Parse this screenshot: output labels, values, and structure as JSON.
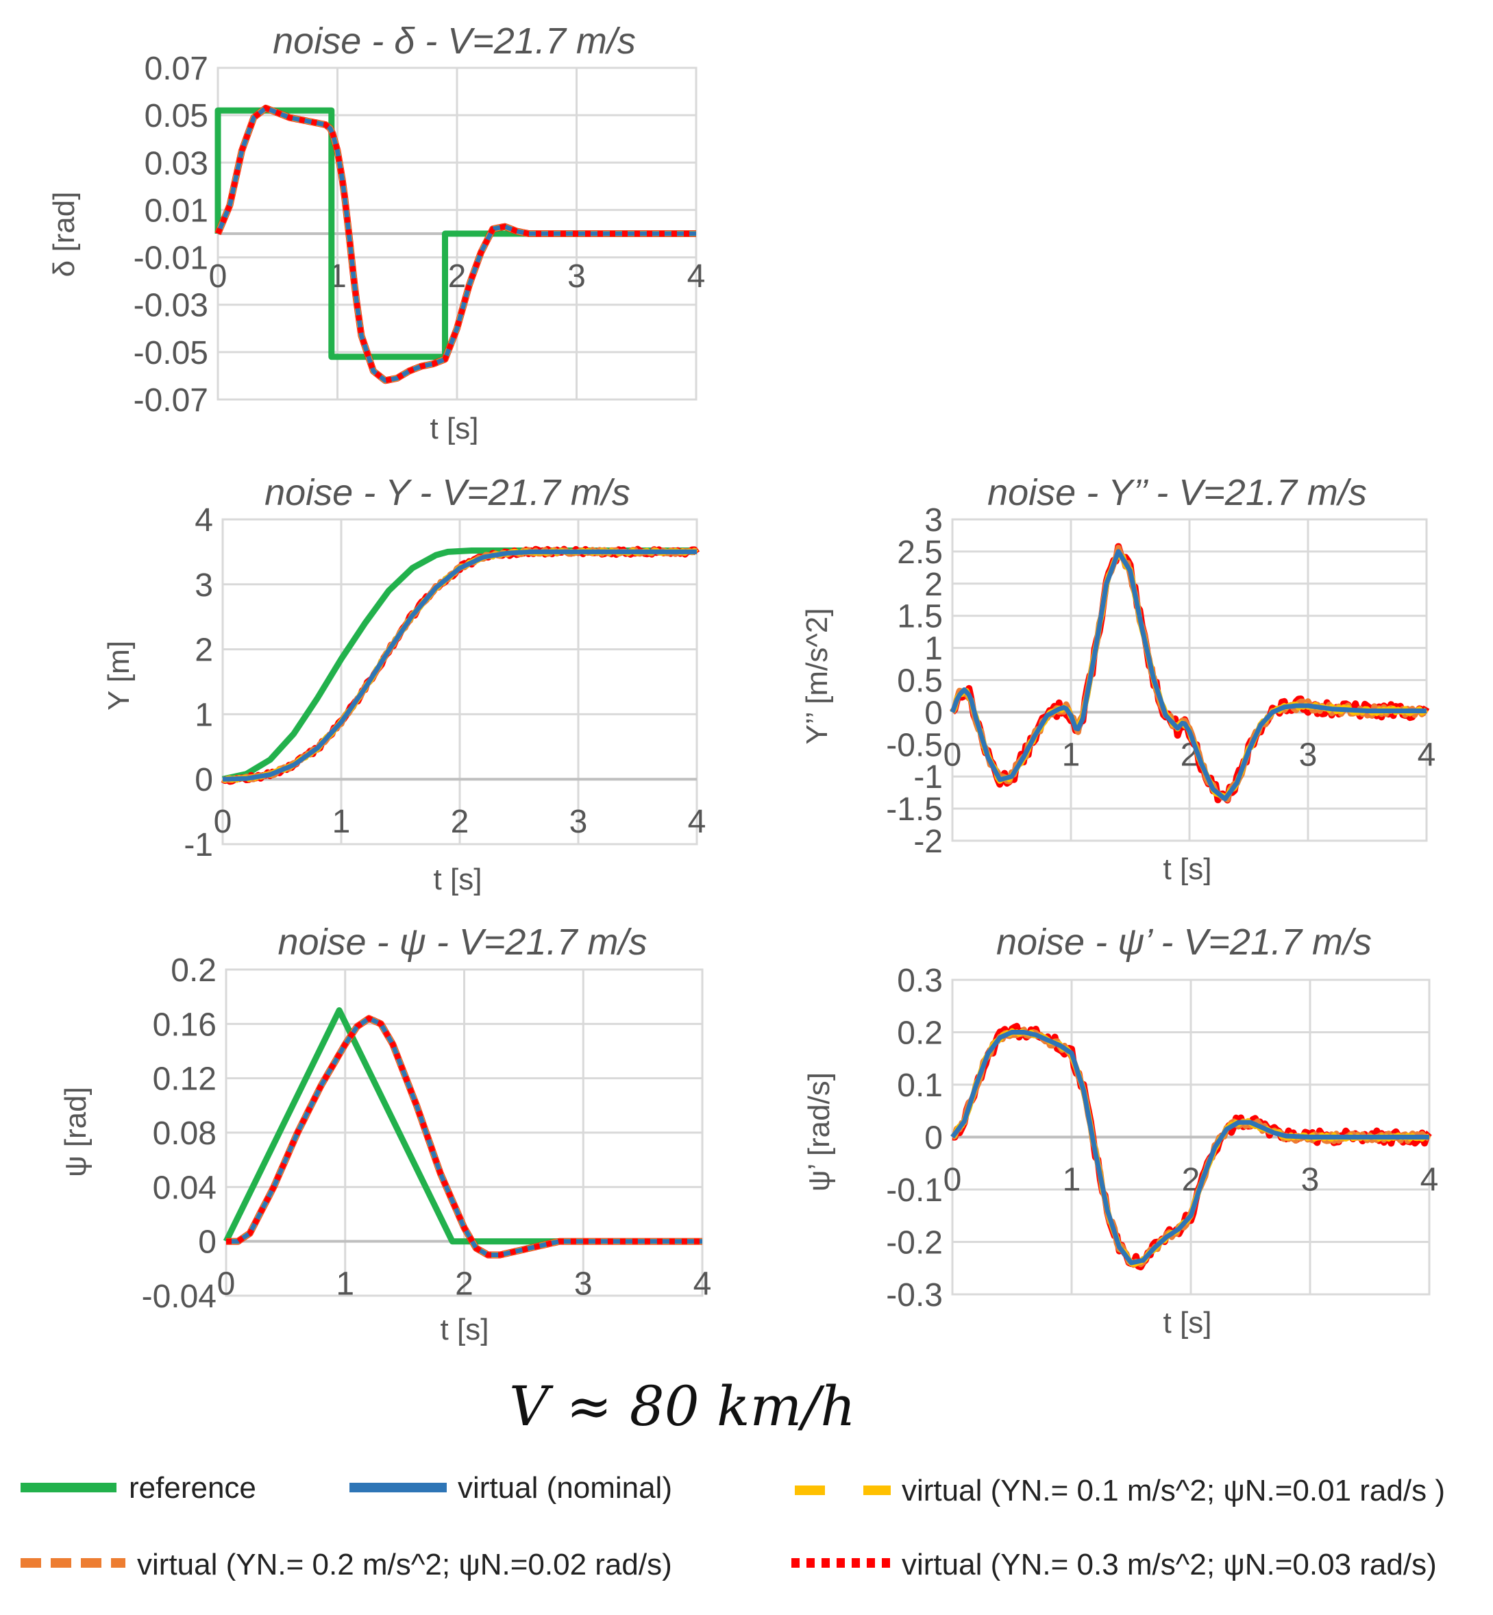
{
  "speed_label": "V ≈ 80 km/h",
  "colors": {
    "reference": "#22B14C",
    "nominal": "#2E75B6",
    "noise1": "#FFC000",
    "noise2": "#ED7D31",
    "noise3": "#FF0000"
  },
  "legend": [
    {
      "key": "reference",
      "label": "reference",
      "style": "solid"
    },
    {
      "key": "nominal",
      "label": "virtual (nominal)",
      "style": "solid"
    },
    {
      "key": "noise1",
      "label": "virtual (YN.= 0.1 m/s^2; ψN.=0.01 rad/s )",
      "style": "dash"
    },
    {
      "key": "noise2",
      "label": "virtual (YN.= 0.2 m/s^2; ψN.=0.02 rad/s)",
      "style": "dash"
    },
    {
      "key": "noise3",
      "label": "virtual (YN.= 0.3 m/s^2; ψN.=0.03 rad/s)",
      "style": "dot"
    }
  ],
  "chart_data": [
    {
      "id": "delta",
      "type": "line",
      "title": "noise - δ - V=21.7 m/s",
      "xlabel": "t [s]",
      "ylabel": "δ [rad]",
      "xlim": [
        0,
        4
      ],
      "ylim": [
        -0.07,
        0.07
      ],
      "xticks": [
        0,
        1,
        2,
        3,
        4
      ],
      "xtick_labels": [
        "0",
        "1",
        "2",
        "3",
        "4"
      ],
      "yticks": [
        0.07,
        0.05,
        0.03,
        0.01,
        -0.01,
        -0.03,
        -0.05,
        -0.07
      ],
      "ytick_labels": [
        "0.07",
        "0.05",
        "0.03",
        "0.01",
        "-0.01",
        "-0.03",
        "-0.05",
        "-0.07"
      ],
      "reference": [
        [
          0,
          0
        ],
        [
          0,
          0.052
        ],
        [
          0.95,
          0.052
        ],
        [
          0.95,
          -0.052
        ],
        [
          1.9,
          -0.052
        ],
        [
          1.9,
          0
        ],
        [
          4,
          0
        ]
      ],
      "virtual": [
        [
          0,
          0
        ],
        [
          0.1,
          0.012
        ],
        [
          0.2,
          0.035
        ],
        [
          0.3,
          0.049
        ],
        [
          0.4,
          0.053
        ],
        [
          0.5,
          0.051
        ],
        [
          0.6,
          0.049
        ],
        [
          0.7,
          0.048
        ],
        [
          0.8,
          0.047
        ],
        [
          0.9,
          0.046
        ],
        [
          0.95,
          0.044
        ],
        [
          1.0,
          0.035
        ],
        [
          1.05,
          0.02
        ],
        [
          1.1,
          -0.002
        ],
        [
          1.15,
          -0.025
        ],
        [
          1.2,
          -0.043
        ],
        [
          1.3,
          -0.058
        ],
        [
          1.4,
          -0.062
        ],
        [
          1.5,
          -0.061
        ],
        [
          1.6,
          -0.058
        ],
        [
          1.7,
          -0.056
        ],
        [
          1.8,
          -0.055
        ],
        [
          1.9,
          -0.053
        ],
        [
          2.0,
          -0.04
        ],
        [
          2.1,
          -0.022
        ],
        [
          2.2,
          -0.008
        ],
        [
          2.3,
          0.002
        ],
        [
          2.4,
          0.003
        ],
        [
          2.5,
          0.001
        ],
        [
          2.6,
          0.0
        ],
        [
          3.0,
          0.0
        ],
        [
          4.0,
          0.0
        ]
      ],
      "noise_amp": [
        0,
        0,
        0
      ],
      "xaxis_at_zero": true
    },
    {
      "id": "Y",
      "type": "line",
      "title": "noise - Y - V=21.7 m/s",
      "xlabel": "t [s]",
      "ylabel": "Y [m]",
      "xlim": [
        0,
        4
      ],
      "ylim": [
        -1,
        4
      ],
      "xticks": [
        0,
        1,
        2,
        3,
        4
      ],
      "xtick_labels": [
        "0",
        "1",
        "2",
        "3",
        "4"
      ],
      "yticks": [
        4,
        3,
        2,
        1,
        0,
        -1
      ],
      "ytick_labels": [
        "4",
        "3",
        "2",
        "1",
        "0",
        "-1"
      ],
      "reference": [
        [
          0,
          0
        ],
        [
          0.2,
          0.08
        ],
        [
          0.4,
          0.3
        ],
        [
          0.6,
          0.7
        ],
        [
          0.8,
          1.25
        ],
        [
          1.0,
          1.85
        ],
        [
          1.2,
          2.4
        ],
        [
          1.4,
          2.9
        ],
        [
          1.6,
          3.25
        ],
        [
          1.8,
          3.45
        ],
        [
          1.9,
          3.5
        ],
        [
          2.1,
          3.52
        ],
        [
          4.0,
          3.52
        ]
      ],
      "virtual": [
        [
          0,
          0
        ],
        [
          0.2,
          0.01
        ],
        [
          0.4,
          0.07
        ],
        [
          0.6,
          0.22
        ],
        [
          0.8,
          0.48
        ],
        [
          1.0,
          0.88
        ],
        [
          1.2,
          1.4
        ],
        [
          1.4,
          1.98
        ],
        [
          1.6,
          2.52
        ],
        [
          1.8,
          2.95
        ],
        [
          2.0,
          3.25
        ],
        [
          2.2,
          3.42
        ],
        [
          2.4,
          3.48
        ],
        [
          2.6,
          3.5
        ],
        [
          3.0,
          3.5
        ],
        [
          4.0,
          3.5
        ]
      ],
      "noise_amp": [
        0.02,
        0.03,
        0.04
      ],
      "xaxis_at_zero": true
    },
    {
      "id": "Ydd",
      "type": "line",
      "title": "noise - Y’’ - V=21.7 m/s",
      "xlabel": "t [s]",
      "ylabel": "Y’’ [m/s^2]",
      "xlim": [
        0,
        4
      ],
      "ylim": [
        -2,
        3
      ],
      "xticks": [
        0,
        1,
        2,
        3,
        4
      ],
      "xtick_labels": [
        "0",
        "1",
        "2",
        "3",
        "4"
      ],
      "yticks": [
        3,
        2.5,
        2,
        1.5,
        1,
        0.5,
        0,
        -0.5,
        -1,
        -1.5,
        -2
      ],
      "ytick_labels": [
        "3",
        "2.5",
        "2",
        "1.5",
        "1",
        "0.5",
        "0",
        "-0.5",
        "-1",
        "-1.5",
        "-2"
      ],
      "reference": [],
      "virtual": [
        [
          0,
          0
        ],
        [
          0.05,
          0.25
        ],
        [
          0.1,
          0.35
        ],
        [
          0.15,
          0.25
        ],
        [
          0.2,
          -0.1
        ],
        [
          0.3,
          -0.7
        ],
        [
          0.4,
          -1.05
        ],
        [
          0.5,
          -1.0
        ],
        [
          0.6,
          -0.7
        ],
        [
          0.7,
          -0.35
        ],
        [
          0.8,
          -0.05
        ],
        [
          0.9,
          0.05
        ],
        [
          0.95,
          0.08
        ],
        [
          1.0,
          -0.05
        ],
        [
          1.05,
          -0.3
        ],
        [
          1.1,
          -0.1
        ],
        [
          1.2,
          0.9
        ],
        [
          1.3,
          2.0
        ],
        [
          1.4,
          2.5
        ],
        [
          1.5,
          2.2
        ],
        [
          1.6,
          1.3
        ],
        [
          1.7,
          0.5
        ],
        [
          1.8,
          -0.05
        ],
        [
          1.9,
          -0.25
        ],
        [
          1.95,
          -0.15
        ],
        [
          2.0,
          -0.3
        ],
        [
          2.1,
          -0.8
        ],
        [
          2.2,
          -1.2
        ],
        [
          2.3,
          -1.35
        ],
        [
          2.4,
          -1.1
        ],
        [
          2.5,
          -0.6
        ],
        [
          2.6,
          -0.2
        ],
        [
          2.7,
          0.0
        ],
        [
          2.8,
          0.08
        ],
        [
          2.9,
          0.1
        ],
        [
          3.0,
          0.1
        ],
        [
          3.2,
          0.05
        ],
        [
          3.5,
          0.02
        ],
        [
          4.0,
          0.02
        ]
      ],
      "noise_amp": [
        0.04,
        0.07,
        0.11
      ],
      "xaxis_at_zero": true
    },
    {
      "id": "psi",
      "type": "line",
      "title": "noise - ψ - V=21.7 m/s",
      "xlabel": "t [s]",
      "ylabel": "ψ [rad]",
      "xlim": [
        0,
        4
      ],
      "ylim": [
        -0.04,
        0.2
      ],
      "xticks": [
        0,
        1,
        2,
        3,
        4
      ],
      "xtick_labels": [
        "0",
        "1",
        "2",
        "3",
        "4"
      ],
      "yticks": [
        0.2,
        0.16,
        0.12,
        0.08,
        0.04,
        0,
        -0.04
      ],
      "ytick_labels": [
        "0.2",
        "0.16",
        "0.12",
        "0.08",
        "0.04",
        "0",
        "-0.04"
      ],
      "reference": [
        [
          0,
          0
        ],
        [
          0.95,
          0.17
        ],
        [
          1.9,
          0
        ],
        [
          4.0,
          0
        ]
      ],
      "virtual": [
        [
          0,
          0
        ],
        [
          0.1,
          0.0
        ],
        [
          0.2,
          0.006
        ],
        [
          0.4,
          0.04
        ],
        [
          0.6,
          0.08
        ],
        [
          0.8,
          0.115
        ],
        [
          1.0,
          0.145
        ],
        [
          1.1,
          0.158
        ],
        [
          1.2,
          0.164
        ],
        [
          1.3,
          0.16
        ],
        [
          1.4,
          0.145
        ],
        [
          1.6,
          0.1
        ],
        [
          1.8,
          0.05
        ],
        [
          2.0,
          0.01
        ],
        [
          2.1,
          -0.005
        ],
        [
          2.2,
          -0.01
        ],
        [
          2.3,
          -0.01
        ],
        [
          2.5,
          -0.006
        ],
        [
          2.7,
          -0.002
        ],
        [
          2.8,
          0.0
        ],
        [
          4.0,
          0.0
        ]
      ],
      "noise_amp": [
        0,
        0,
        0
      ],
      "xaxis_at_zero": true
    },
    {
      "id": "psid",
      "type": "line",
      "title": "noise - ψ’ - V=21.7 m/s",
      "xlabel": "t [s]",
      "ylabel": "ψ’ [rad/s]",
      "xlim": [
        0,
        4
      ],
      "ylim": [
        -0.3,
        0.3
      ],
      "xticks": [
        0,
        1,
        2,
        3,
        4
      ],
      "xtick_labels": [
        "0",
        "1",
        "2",
        "3",
        "4"
      ],
      "yticks": [
        0.3,
        0.2,
        0.1,
        0,
        -0.1,
        -0.2,
        -0.3
      ],
      "ytick_labels": [
        "0.3",
        "0.2",
        "0.1",
        "0",
        "-0.1",
        "-0.2",
        "-0.3"
      ],
      "reference": [],
      "virtual": [
        [
          0,
          0
        ],
        [
          0.1,
          0.03
        ],
        [
          0.2,
          0.1
        ],
        [
          0.3,
          0.16
        ],
        [
          0.4,
          0.19
        ],
        [
          0.5,
          0.2
        ],
        [
          0.6,
          0.2
        ],
        [
          0.7,
          0.195
        ],
        [
          0.8,
          0.185
        ],
        [
          0.9,
          0.175
        ],
        [
          1.0,
          0.16
        ],
        [
          1.1,
          0.09
        ],
        [
          1.2,
          -0.03
        ],
        [
          1.3,
          -0.14
        ],
        [
          1.4,
          -0.21
        ],
        [
          1.5,
          -0.24
        ],
        [
          1.6,
          -0.235
        ],
        [
          1.7,
          -0.21
        ],
        [
          1.8,
          -0.19
        ],
        [
          1.9,
          -0.175
        ],
        [
          2.0,
          -0.15
        ],
        [
          2.1,
          -0.08
        ],
        [
          2.2,
          -0.02
        ],
        [
          2.3,
          0.015
        ],
        [
          2.4,
          0.028
        ],
        [
          2.5,
          0.028
        ],
        [
          2.6,
          0.018
        ],
        [
          2.7,
          0.008
        ],
        [
          2.8,
          0.002
        ],
        [
          3.0,
          0.0
        ],
        [
          4.0,
          0.0
        ]
      ],
      "noise_amp": [
        0.004,
        0.008,
        0.012
      ],
      "xaxis_at_zero": true
    }
  ]
}
